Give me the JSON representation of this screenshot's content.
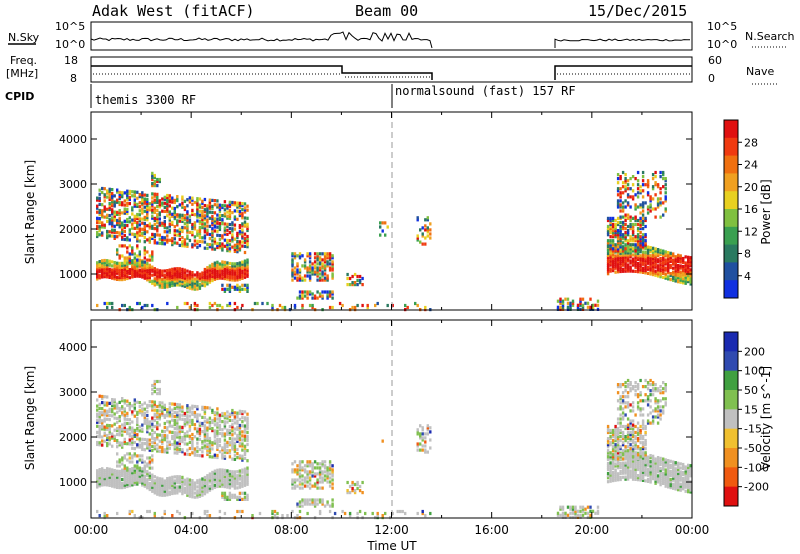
{
  "header": {
    "title": "Adak West (fitACF)",
    "beam": "Beam 00",
    "date": "15/Dec/2015"
  },
  "panels": {
    "nsky": {
      "label": "N.Sky",
      "tick_top": "10^5",
      "tick_bottom": "10^0",
      "right_label": "N.Search",
      "right_tick_top": "10^5",
      "right_tick_bottom": "10^0"
    },
    "freq": {
      "label_line1": "Freq.",
      "label_line2": "[MHz]",
      "tick_top": "18",
      "tick_bottom": "8",
      "right_label": "Nave",
      "right_tick_top": "60",
      "right_tick_bottom": "0"
    },
    "cpid": {
      "label": "CPID",
      "segments": [
        {
          "text": "themis 3300 RF",
          "start_hour": 0.0,
          "end_hour": 12.0
        },
        {
          "text": "normalsound (fast) 157 RF",
          "start_hour": 12.0,
          "end_hour": 24.0
        }
      ]
    }
  },
  "colors": {
    "power": [
      "#1030e0",
      "#2050a0",
      "#2a7a60",
      "#3aa050",
      "#80c040",
      "#e8d020",
      "#f0a020",
      "#f07010",
      "#f03a10",
      "#e01010"
    ],
    "velocity": [
      "#e01010",
      "#f05a10",
      "#f09020",
      "#f0c030",
      "#c0c0c0",
      "#80c050",
      "#40a040",
      "#304ab0",
      "#1a2ab0"
    ]
  },
  "chart_data": [
    {
      "type": "heatmap",
      "name": "power",
      "ylabel": "Slant Range [km]",
      "xlabel": "",
      "yticks": [
        "1000",
        "2000",
        "3000",
        "4000"
      ],
      "ylim": [
        200,
        4600
      ],
      "xlim": [
        0,
        24
      ],
      "colorbar_label": "Power [dB]",
      "colorbar_ticks": [
        "4",
        "8",
        "12",
        "16",
        "20",
        "24",
        "28"
      ],
      "colorbar_range": [
        0,
        32
      ]
    },
    {
      "type": "heatmap",
      "name": "velocity",
      "ylabel": "Slant Range [km]",
      "xlabel": "Time UT",
      "xticks": [
        "00:00",
        "04:00",
        "08:00",
        "12:00",
        "16:00",
        "20:00",
        "00:00"
      ],
      "yticks": [
        "1000",
        "2000",
        "3000",
        "4000"
      ],
      "ylim": [
        200,
        4600
      ],
      "xlim": [
        0,
        24
      ],
      "colorbar_label": "Velocity [m s^-1]",
      "colorbar_ticks": [
        "200",
        "100",
        "50",
        "15",
        "-15",
        "-50",
        "-100",
        "-200"
      ]
    }
  ]
}
